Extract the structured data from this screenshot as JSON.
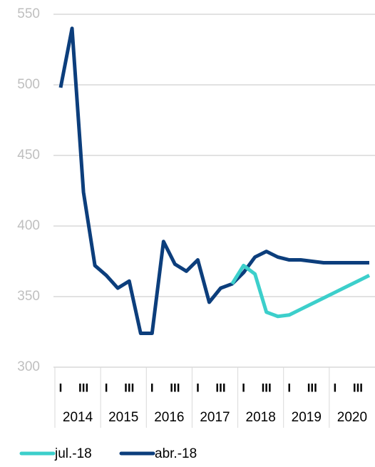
{
  "chart_data": {
    "type": "line",
    "categories": [
      "I",
      null,
      "III",
      null,
      "I",
      null,
      "III",
      null,
      "I",
      null,
      "III",
      null,
      "I",
      null,
      "III",
      null,
      "I",
      null,
      "III",
      null,
      "I",
      null,
      "III",
      null,
      "I",
      null,
      "III",
      null
    ],
    "x_groups": [
      "2014",
      "2015",
      "2016",
      "2017",
      "2018",
      "2019",
      "2020"
    ],
    "series": [
      {
        "name": "jul.-18",
        "color": "#3ccfcb",
        "values": [
          null,
          null,
          null,
          null,
          null,
          null,
          null,
          null,
          null,
          null,
          null,
          null,
          null,
          null,
          null,
          359,
          372,
          366,
          339,
          336,
          337,
          341,
          345,
          349,
          353,
          357,
          361,
          365
        ]
      },
      {
        "name": "abr.-18",
        "color": "#0c3e7c",
        "values": [
          498,
          540,
          424,
          372,
          365,
          356,
          361,
          324,
          324,
          389,
          373,
          368,
          376,
          346,
          356,
          359,
          367,
          378,
          382,
          378,
          376,
          376,
          375,
          374,
          374,
          374,
          374,
          374
        ]
      }
    ],
    "ylim": [
      300,
      550
    ],
    "yticks": [
      300,
      350,
      400,
      450,
      500,
      550
    ],
    "grid": true,
    "legend": "bottom"
  }
}
